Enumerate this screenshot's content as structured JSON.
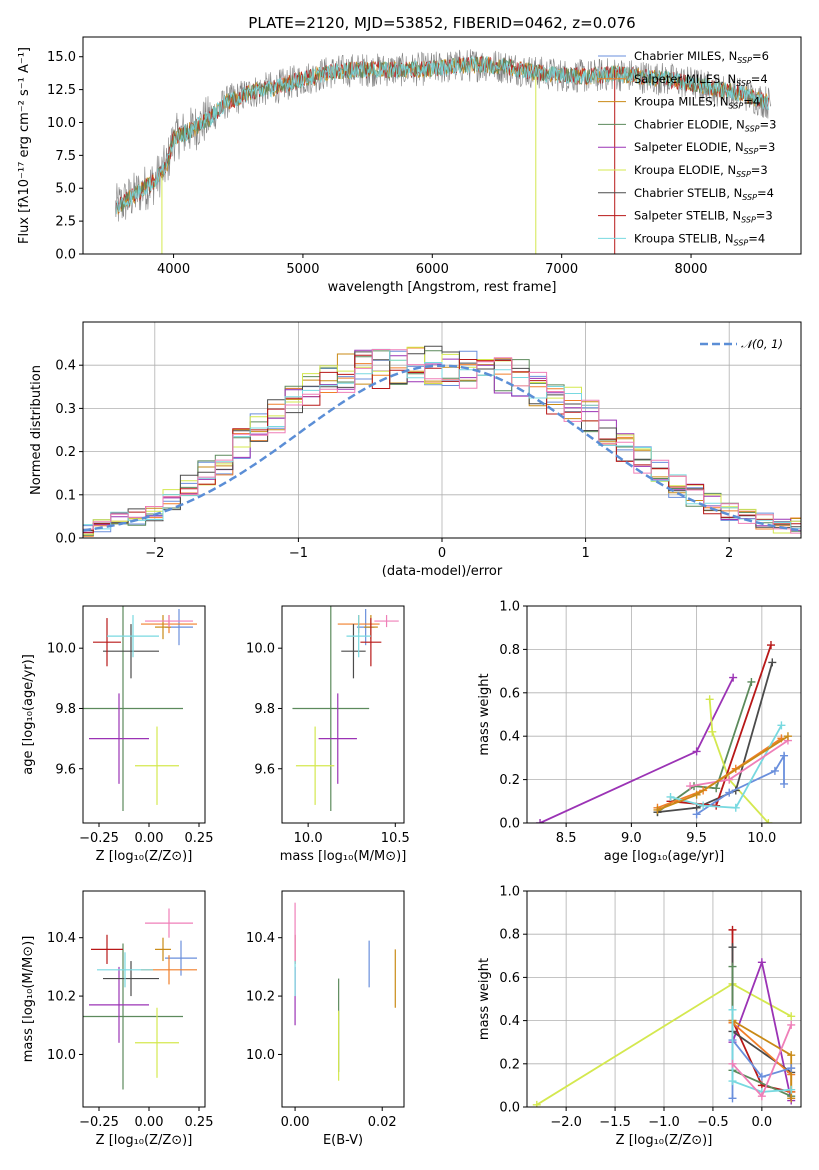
{
  "figure_title": "PLATE=2120, MJD=53852, FIBERID=0462, z=0.076",
  "colors": {
    "Chabrier MILES": "#6a8fdc",
    "Salpeter MILES": "#f07f2a",
    "Kroupa MILES": "#c98a16",
    "Chabrier ELODIE": "#5c8a5c",
    "Salpeter ELODIE": "#9b33b5",
    "Kroupa ELODIE": "#d4e84f",
    "Chabrier STELIB": "#4b4b4b",
    "Salpeter STELIB": "#b81818",
    "Kroupa STELIB": "#78d9e0",
    "Pink": "#ef7fb8",
    "normal": "#5b8ed6"
  },
  "chart_data": [
    {
      "type": "line",
      "title": "PLATE=2120, MJD=53852, FIBERID=0462, z=0.076",
      "xlabel": "wavelength [Angstrom, rest frame]",
      "ylabel": "Flux [fλ10⁻¹⁷ erg cm⁻² s⁻¹ A⁻¹]",
      "xlim": [
        3300,
        8850
      ],
      "ylim": [
        0,
        16.5
      ],
      "xticks": [
        4000,
        5000,
        6000,
        7000,
        8000
      ],
      "yticks": [
        0.0,
        2.5,
        5.0,
        7.5,
        10.0,
        12.5,
        15.0
      ],
      "grid": false,
      "legend_position": "right",
      "legend": [
        "Chabrier MILES, N_SSP=6",
        "Salpeter MILES, N_SSP=4",
        "Kroupa MILES, N_SSP=4",
        "Chabrier ELODIE, N_SSP=3",
        "Salpeter ELODIE, N_SSP=3",
        "Kroupa ELODIE, N_SSP=3",
        "Chabrier STELIB, N_SSP=4",
        "Salpeter STELIB, N_SSP=3",
        "Kroupa STELIB, N_SSP=4"
      ],
      "continuum": [
        [
          3550,
          3.5
        ],
        [
          3700,
          4.5
        ],
        [
          3850,
          5.5
        ],
        [
          3950,
          6.8
        ],
        [
          4000,
          8.8
        ],
        [
          4150,
          9.5
        ],
        [
          4300,
          10.5
        ],
        [
          4400,
          11.5
        ],
        [
          4600,
          12.3
        ],
        [
          4800,
          12.7
        ],
        [
          5000,
          13.3
        ],
        [
          5200,
          13.8
        ],
        [
          5400,
          14.0
        ],
        [
          5600,
          14.0
        ],
        [
          5800,
          14.0
        ],
        [
          6000,
          14.1
        ],
        [
          6200,
          14.3
        ],
        [
          6400,
          14.4
        ],
        [
          6600,
          14.2
        ],
        [
          6800,
          13.8
        ],
        [
          7000,
          13.6
        ],
        [
          7200,
          13.5
        ],
        [
          7400,
          13.7
        ],
        [
          7600,
          13.5
        ],
        [
          7800,
          13.3
        ],
        [
          8000,
          13.0
        ],
        [
          8200,
          12.5
        ],
        [
          8400,
          12.2
        ],
        [
          8600,
          11.5
        ]
      ]
    },
    {
      "type": "line",
      "xlabel": "(data-model)/error",
      "ylabel": "Normed distribution",
      "xlim": [
        -2.5,
        2.5
      ],
      "ylim": [
        0,
        0.5
      ],
      "xticks": [
        -2,
        -1,
        0,
        1,
        2
      ],
      "yticks": [
        0.0,
        0.1,
        0.2,
        0.3,
        0.4
      ],
      "grid": true,
      "legend": [
        "𝒩(0, 1)"
      ],
      "legend_position": "top-right",
      "histogram_mean": [
        0.02,
        0.03,
        0.04,
        0.05,
        0.06,
        0.09,
        0.12,
        0.15,
        0.17,
        0.22,
        0.26,
        0.28,
        0.31,
        0.34,
        0.36,
        0.38,
        0.39,
        0.39,
        0.4,
        0.4,
        0.4,
        0.4,
        0.39,
        0.39,
        0.38,
        0.37,
        0.35,
        0.33,
        0.31,
        0.28,
        0.25,
        0.21,
        0.18,
        0.15,
        0.12,
        0.1,
        0.08,
        0.06,
        0.05,
        0.04,
        0.03,
        0.03
      ]
    },
    {
      "type": "scatter",
      "xlabel": "Z [log₁₀(Z/Z⊙)]",
      "ylabel": "age  [log₁₀(age/yr)]",
      "xlim": [
        -0.33,
        0.28
      ],
      "ylim": [
        9.42,
        10.14
      ],
      "xticks": [
        -0.25,
        0.0,
        0.25
      ],
      "xticklabels": [
        "−0.25",
        "0.00",
        "0.25"
      ],
      "yticks": [
        9.6,
        9.8,
        10.0
      ],
      "points": [
        {
          "model": "Chabrier MILES",
          "x": 0.15,
          "y": 10.07,
          "xerr": 0.07,
          "yerr": 0.06
        },
        {
          "model": "Salpeter MILES",
          "x": 0.1,
          "y": 10.08,
          "xerr": 0.14,
          "yerr": 0.03
        },
        {
          "model": "Kroupa MILES",
          "x": 0.07,
          "y": 10.07,
          "xerr": 0.04,
          "yerr": 0.04
        },
        {
          "model": "Chabrier ELODIE",
          "x": -0.13,
          "y": 9.8,
          "xerr": 0.3,
          "yerr": 0.34
        },
        {
          "model": "Salpeter ELODIE",
          "x": -0.15,
          "y": 9.7,
          "xerr": 0.15,
          "yerr": 0.15
        },
        {
          "model": "Kroupa ELODIE",
          "x": 0.04,
          "y": 9.61,
          "xerr": 0.11,
          "yerr": 0.13
        },
        {
          "model": "Chabrier STELIB",
          "x": -0.09,
          "y": 9.99,
          "xerr": 0.14,
          "yerr": 0.09
        },
        {
          "model": "Salpeter STELIB",
          "x": -0.21,
          "y": 10.02,
          "xerr": 0.07,
          "yerr": 0.08
        },
        {
          "model": "Kroupa STELIB",
          "x": -0.08,
          "y": 10.04,
          "xerr": 0.13,
          "yerr": 0.07
        },
        {
          "model": "Pink",
          "x": 0.1,
          "y": 10.09,
          "xerr": 0.12,
          "yerr": 0.02
        }
      ]
    },
    {
      "type": "scatter",
      "xlabel": "mass [log₁₀(M/M⊙)]",
      "xlim": [
        9.85,
        10.55
      ],
      "ylim": [
        9.42,
        10.14
      ],
      "xticks": [
        10.0,
        10.5
      ],
      "xticklabels": [
        "10.0",
        "10.5"
      ],
      "yticks": [
        9.6,
        9.8,
        10.0
      ],
      "points": [
        {
          "model": "Chabrier MILES",
          "x": 10.33,
          "y": 10.07,
          "xerr": 0.05,
          "yerr": 0.06
        },
        {
          "model": "Salpeter MILES",
          "x": 10.29,
          "y": 10.08,
          "xerr": 0.12,
          "yerr": 0.03
        },
        {
          "model": "Kroupa MILES",
          "x": 10.36,
          "y": 10.07,
          "xerr": 0.04,
          "yerr": 0.04
        },
        {
          "model": "Chabrier ELODIE",
          "x": 10.13,
          "y": 9.8,
          "xerr": 0.22,
          "yerr": 0.34
        },
        {
          "model": "Salpeter ELODIE",
          "x": 10.17,
          "y": 9.7,
          "xerr": 0.11,
          "yerr": 0.15
        },
        {
          "model": "Kroupa ELODIE",
          "x": 10.04,
          "y": 9.61,
          "xerr": 0.11,
          "yerr": 0.13
        },
        {
          "model": "Chabrier STELIB",
          "x": 10.26,
          "y": 9.99,
          "xerr": 0.07,
          "yerr": 0.09
        },
        {
          "model": "Salpeter STELIB",
          "x": 10.36,
          "y": 10.02,
          "xerr": 0.06,
          "yerr": 0.08
        },
        {
          "model": "Kroupa STELIB",
          "x": 10.29,
          "y": 10.04,
          "xerr": 0.07,
          "yerr": 0.07
        },
        {
          "model": "Pink",
          "x": 10.45,
          "y": 10.09,
          "xerr": 0.07,
          "yerr": 0.02
        }
      ]
    },
    {
      "type": "line",
      "xlabel": "age  [log₁₀(age/yr)]",
      "ylabel": "mass weight",
      "xlim": [
        8.2,
        10.3
      ],
      "ylim": [
        0.0,
        1.0
      ],
      "xticks": [
        8.5,
        9.0,
        9.5,
        10.0
      ],
      "yticks": [
        0.0,
        0.2,
        0.4,
        0.6,
        0.8,
        1.0
      ],
      "grid": true,
      "series": [
        {
          "model": "Salpeter ELODIE",
          "x": [
            8.3,
            9.5,
            9.78
          ],
          "y": [
            0.0,
            0.33,
            0.67
          ]
        },
        {
          "model": "Chabrier ELODIE",
          "x": [
            9.2,
            9.48,
            9.65,
            9.92
          ],
          "y": [
            0.05,
            0.17,
            0.16,
            0.65
          ]
        },
        {
          "model": "Kroupa ELODIE",
          "x": [
            9.6,
            9.62,
            9.75,
            10.05
          ],
          "y": [
            0.57,
            0.42,
            0.2,
            0.0
          ]
        },
        {
          "model": "Chabrier STELIB",
          "x": [
            9.2,
            9.5,
            9.8,
            10.08
          ],
          "y": [
            0.05,
            0.07,
            0.15,
            0.74
          ]
        },
        {
          "model": "Salpeter STELIB",
          "x": [
            9.3,
            9.65,
            10.07
          ],
          "y": [
            0.1,
            0.08,
            0.82
          ]
        },
        {
          "model": "Salpeter MILES",
          "x": [
            9.2,
            9.55,
            9.8,
            10.15
          ],
          "y": [
            0.07,
            0.15,
            0.25,
            0.39
          ]
        },
        {
          "model": "Chabrier MILES",
          "x": [
            9.5,
            9.75,
            10.1,
            10.17,
            10.17
          ],
          "y": [
            0.04,
            0.14,
            0.24,
            0.31,
            0.18
          ]
        },
        {
          "model": "Kroupa STELIB",
          "x": [
            9.3,
            9.55,
            9.8,
            10.15
          ],
          "y": [
            0.12,
            0.08,
            0.07,
            0.45
          ]
        },
        {
          "model": "Pink",
          "x": [
            9.45,
            9.75,
            10.2
          ],
          "y": [
            0.17,
            0.2,
            0.38
          ]
        },
        {
          "model": "Kroupa MILES",
          "x": [
            9.2,
            9.5,
            10.2
          ],
          "y": [
            0.06,
            0.13,
            0.4
          ]
        }
      ]
    },
    {
      "type": "scatter",
      "xlabel": "Z [log₁₀(Z/Z⊙)]",
      "ylabel": "mass [log₁₀(M/M⊙)]",
      "xlim": [
        -0.33,
        0.28
      ],
      "ylim": [
        9.82,
        10.56
      ],
      "xticks": [
        -0.25,
        0.0,
        0.25
      ],
      "xticklabels": [
        "−0.25",
        "0.00",
        "0.25"
      ],
      "yticks": [
        10.0,
        10.2,
        10.4
      ],
      "points": [
        {
          "model": "Chabrier MILES",
          "x": 0.16,
          "y": 10.33,
          "xerr": 0.08,
          "yerr": 0.06
        },
        {
          "model": "Salpeter MILES",
          "x": 0.1,
          "y": 10.29,
          "xerr": 0.14,
          "yerr": 0.05
        },
        {
          "model": "Kroupa MILES",
          "x": 0.07,
          "y": 10.36,
          "xerr": 0.04,
          "yerr": 0.04
        },
        {
          "model": "Chabrier ELODIE",
          "x": -0.13,
          "y": 10.13,
          "xerr": 0.3,
          "yerr": 0.25
        },
        {
          "model": "Salpeter ELODIE",
          "x": -0.15,
          "y": 10.17,
          "xerr": 0.15,
          "yerr": 0.13
        },
        {
          "model": "Kroupa ELODIE",
          "x": 0.04,
          "y": 10.04,
          "xerr": 0.11,
          "yerr": 0.12
        },
        {
          "model": "Chabrier STELIB",
          "x": -0.09,
          "y": 10.26,
          "xerr": 0.14,
          "yerr": 0.06
        },
        {
          "model": "Salpeter STELIB",
          "x": -0.21,
          "y": 10.36,
          "xerr": 0.08,
          "yerr": 0.05
        },
        {
          "model": "Kroupa STELIB",
          "x": -0.12,
          "y": 10.29,
          "xerr": 0.14,
          "yerr": 0.06
        },
        {
          "model": "Pink",
          "x": 0.1,
          "y": 10.45,
          "xerr": 0.12,
          "yerr": 0.05
        }
      ]
    },
    {
      "type": "scatter",
      "xlabel": "E(B-V)",
      "xlim": [
        -0.003,
        0.025
      ],
      "ylim": [
        9.82,
        10.56
      ],
      "xticks": [
        0.0,
        0.02
      ],
      "xticklabels": [
        "0.00",
        "0.02"
      ],
      "yticks": [
        10.0,
        10.2,
        10.4
      ],
      "points": [
        {
          "model": "Chabrier MILES",
          "x": 0.017,
          "y": 10.31,
          "xerr": 0,
          "yerr": 0.08
        },
        {
          "model": "Kroupa MILES",
          "x": 0.023,
          "y": 10.26,
          "xerr": 0,
          "yerr": 0.1
        },
        {
          "model": "Chabrier ELODIE",
          "x": 0.01,
          "y": 10.1,
          "xerr": 0,
          "yerr": 0.16
        },
        {
          "model": "Kroupa ELODIE",
          "x": 0.01,
          "y": 10.03,
          "xerr": 0,
          "yerr": 0.12
        },
        {
          "model": "Salpeter ELODIE",
          "x": 0.0,
          "y": 10.2,
          "xerr": 0,
          "yerr": 0.1
        },
        {
          "model": "Salpeter STELIB",
          "x": 0.0,
          "y": 10.36,
          "xerr": 0,
          "yerr": 0.05
        },
        {
          "model": "Kroupa STELIB",
          "x": 0.0,
          "y": 10.26,
          "xerr": 0,
          "yerr": 0.06
        },
        {
          "model": "Pink",
          "x": 0.0,
          "y": 10.42,
          "xerr": 0,
          "yerr": 0.1
        }
      ]
    },
    {
      "type": "line",
      "xlabel": "Z [log₁₀(Z/Z⊙)]",
      "ylabel": "mass weight",
      "xlim": [
        -2.4,
        0.4
      ],
      "ylim": [
        0.0,
        1.0
      ],
      "xticks": [
        -2.0,
        -1.5,
        -1.0,
        -0.5,
        0.0
      ],
      "xticklabels": [
        "−2.0",
        "−1.5",
        "−1.0",
        "−0.5",
        "0.0"
      ],
      "yticks": [
        0.0,
        0.2,
        0.4,
        0.6,
        0.8,
        1.0
      ],
      "grid": true,
      "series": [
        {
          "model": "Kroupa ELODIE",
          "x": [
            -2.3,
            -0.3,
            0.3
          ],
          "y": [
            0.01,
            0.57,
            0.42
          ]
        },
        {
          "model": "Salpeter ELODIE",
          "x": [
            -0.3,
            0.0,
            0.3
          ],
          "y": [
            0.3,
            0.67,
            0.03
          ]
        },
        {
          "model": "Salpeter STELIB",
          "x": [
            -0.3,
            -0.3,
            0.0,
            0.3
          ],
          "y": [
            0.82,
            0.4,
            0.1,
            0.07
          ]
        },
        {
          "model": "Chabrier STELIB",
          "x": [
            -0.3,
            -0.3,
            0.3
          ],
          "y": [
            0.74,
            0.35,
            0.16
          ]
        },
        {
          "model": "Chabrier ELODIE",
          "x": [
            -0.3,
            -0.3,
            0.3
          ],
          "y": [
            0.65,
            0.17,
            0.05
          ]
        },
        {
          "model": "Salpeter MILES",
          "x": [
            -0.3,
            0.3,
            0.3
          ],
          "y": [
            0.39,
            0.15,
            0.07
          ]
        },
        {
          "model": "Kroupa MILES",
          "x": [
            -0.3,
            0.3,
            0.3
          ],
          "y": [
            0.4,
            0.24,
            0.04
          ]
        },
        {
          "model": "Chabrier MILES",
          "x": [
            -0.3,
            -0.3,
            0.0,
            0.3
          ],
          "y": [
            0.04,
            0.31,
            0.14,
            0.18
          ]
        },
        {
          "model": "Kroupa STELIB",
          "x": [
            -0.3,
            -0.3,
            0.0,
            0.3
          ],
          "y": [
            0.45,
            0.12,
            0.07,
            0.08
          ]
        },
        {
          "model": "Pink",
          "x": [
            -0.3,
            0.0,
            0.3
          ],
          "y": [
            0.2,
            0.05,
            0.38
          ]
        }
      ]
    }
  ]
}
